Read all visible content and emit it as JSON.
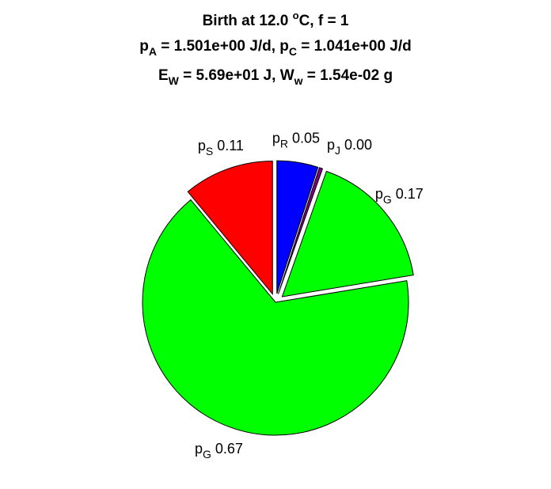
{
  "title": {
    "line1": {
      "prefix": "Birth at 12.0 ",
      "sup": "o",
      "suffix": "C, f = 1"
    },
    "line2": {
      "a_base": "p",
      "a_sub": "A",
      "a_value": " = 1.501e+00 J/d, ",
      "c_base": "p",
      "c_sub": "C",
      "c_value": " = 1.041e+00 J/d"
    },
    "line3": {
      "e_base": "E",
      "e_sub": "W",
      "e_value": " = 5.69e+01 J, ",
      "w_base": "W",
      "w_sub": "w",
      "w_value": " = 1.54e-02 g"
    }
  },
  "chart_data": {
    "type": "pie",
    "start_angle_deg": 90,
    "direction": "clockwise",
    "slices": [
      {
        "base": "p",
        "sub": "R",
        "value_text": "0.05",
        "value": 0.05,
        "color": "#0000ff",
        "exploded": true
      },
      {
        "base": "p",
        "sub": "J",
        "value_text": "0.00",
        "value": 0.004,
        "color": "#800080",
        "exploded": true
      },
      {
        "base": "p",
        "sub": "G",
        "value_text": "0.17",
        "value": 0.17,
        "color": "#00ff00",
        "exploded": true
      },
      {
        "base": "p",
        "sub": "G",
        "value_text": "0.67",
        "value": 0.666,
        "color": "#00ff00",
        "exploded": false
      },
      {
        "base": "p",
        "sub": "S",
        "value_text": "0.11",
        "value": 0.11,
        "color": "#ff0000",
        "exploded": true
      }
    ]
  }
}
